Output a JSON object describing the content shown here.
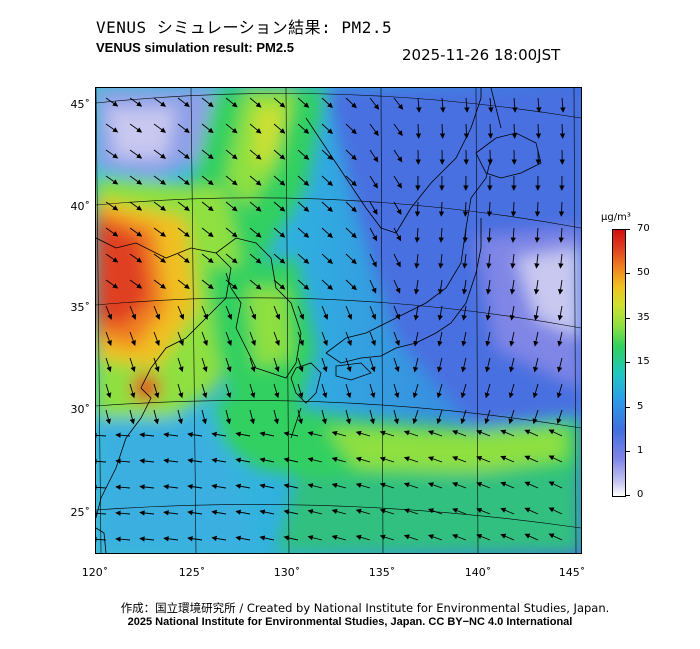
{
  "header": {
    "title_jp": "VENUS シミュレーション結果: PM2.5",
    "title_en": "VENUS simulation result: PM2.5",
    "timestamp": "2025-11-26 18:00JST"
  },
  "map": {
    "lat_labels": [
      "45˚",
      "40˚",
      "35˚",
      "30˚",
      "25˚"
    ],
    "lon_labels": [
      "120˚",
      "125˚",
      "130˚",
      "135˚",
      "140˚",
      "145˚"
    ]
  },
  "colorbar": {
    "unit": "μg/m³",
    "ticks": [
      "70",
      "50",
      "35",
      "15",
      "5",
      "1",
      "0"
    ]
  },
  "footer": {
    "credit_line1": "作成：国立環境研究所 / Created by National Institute for Environmental Studies, Japan.",
    "credit_line2": "2025 National Institute for Environmental Studies, Japan. CC BY−NC 4.0 International"
  },
  "colors": {
    "high": "#d01010",
    "mid": "#30d060",
    "low": "#3f6fe0",
    "clean": "#ffffff"
  }
}
